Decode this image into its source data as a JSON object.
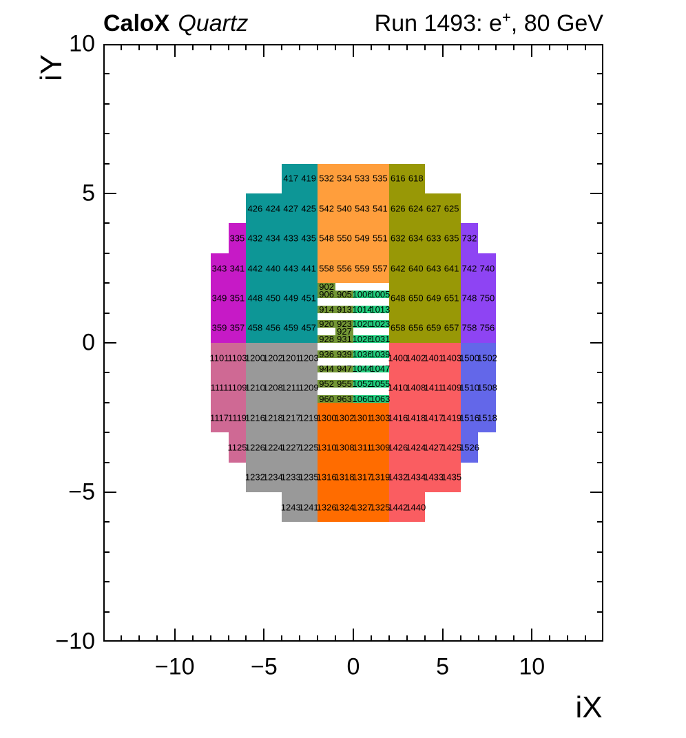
{
  "header": {
    "experiment": "CaloX",
    "detector": "Quartz",
    "run_prefix": "Run 1493: e",
    "run_sup": "+",
    "run_suffix": ", 80 GeV"
  },
  "colors": {
    "teal": "#0d9696",
    "magenta": "#c61ac6",
    "orange_top": "#ff9e3c",
    "olive": "#989806",
    "purple": "#8e44f3",
    "pink": "#cf6994",
    "gray": "#999999",
    "orange_bottom": "#ff6c00",
    "red": "#fa5d61",
    "blue": "#6367e9",
    "green_dark": "#739634",
    "green_bright": "#21ce7d",
    "frame": "#000000",
    "text": "#000000"
  },
  "chart_data": {
    "type": "heatmap",
    "title": "CaloX Quartz — Run 1493: e+, 80 GeV",
    "x_axis": {
      "title": "iX",
      "min": -14,
      "max": 14,
      "major_ticks": [
        -10,
        -5,
        0,
        5,
        10
      ],
      "major_labels": [
        "−10",
        "−5",
        "0",
        "5",
        "10"
      ],
      "minor_step": 1
    },
    "y_axis": {
      "title": "iY",
      "min": -10,
      "max": 10,
      "major_ticks": [
        10,
        5,
        0,
        -5,
        -10
      ],
      "major_labels": [
        "10",
        "5",
        "0",
        "−5",
        "−10"
      ],
      "minor_step": 1
    },
    "grid": false,
    "regions": [
      {
        "name": "teal-sector",
        "color": "teal",
        "rects": [
          [
            -6,
            0,
            -2,
            5
          ],
          [
            -4,
            5,
            -2,
            6
          ]
        ]
      },
      {
        "name": "magenta-sector",
        "color": "magenta",
        "rects": [
          [
            -8,
            0,
            -6,
            3
          ],
          [
            -7,
            3,
            -6,
            4
          ]
        ]
      },
      {
        "name": "orange-top-sector",
        "color": "orange_top",
        "rects": [
          [
            -2,
            2,
            2,
            6
          ]
        ]
      },
      {
        "name": "olive-sector",
        "color": "olive",
        "rects": [
          [
            2,
            0,
            6,
            5
          ],
          [
            2,
            5,
            4,
            6
          ]
        ]
      },
      {
        "name": "purple-sector",
        "color": "purple",
        "rects": [
          [
            6,
            0,
            8,
            3
          ],
          [
            6,
            3,
            7,
            4
          ]
        ]
      },
      {
        "name": "pink-sector",
        "color": "pink",
        "rects": [
          [
            -8,
            -3,
            -6,
            0
          ],
          [
            -7,
            -4,
            -6,
            -3
          ]
        ]
      },
      {
        "name": "gray-sector",
        "color": "gray",
        "rects": [
          [
            -6,
            -5,
            -2,
            0
          ],
          [
            -4,
            -6,
            -2,
            -5
          ]
        ]
      },
      {
        "name": "orange-bottom-sector",
        "color": "orange_bottom",
        "rects": [
          [
            -2,
            -6,
            2,
            -2
          ]
        ]
      },
      {
        "name": "red-sector",
        "color": "red",
        "rects": [
          [
            2,
            -5,
            6,
            0
          ],
          [
            2,
            -6,
            4,
            -5
          ]
        ]
      },
      {
        "name": "blue-sector",
        "color": "blue",
        "rects": [
          [
            6,
            -3,
            8,
            0
          ],
          [
            6,
            -4,
            7,
            -3
          ]
        ]
      }
    ],
    "cell_rows": [
      {
        "y": 5.5,
        "segments": [
          {
            "x0": -3.5,
            "labels": [
              "417",
              "419",
              "532",
              "534",
              "533",
              "535",
              "616",
              "618"
            ]
          }
        ]
      },
      {
        "y": 4.5,
        "segments": [
          {
            "x0": -5.5,
            "labels": [
              "426",
              "424",
              "427",
              "425",
              "542",
              "540",
              "543",
              "541",
              "626",
              "624",
              "627",
              "625"
            ]
          }
        ]
      },
      {
        "y": 3.5,
        "segments": [
          {
            "x0": -6.5,
            "labels": [
              "335",
              "432",
              "434",
              "433",
              "435",
              "548",
              "550",
              "549",
              "551",
              "632",
              "634",
              "633",
              "635",
              "732"
            ]
          }
        ]
      },
      {
        "y": 2.5,
        "segments": [
          {
            "x0": -7.5,
            "labels": [
              "343",
              "341",
              "442",
              "440",
              "443",
              "441",
              "558",
              "556",
              "559",
              "557",
              "642",
              "640",
              "643",
              "641",
              "742",
              "740"
            ]
          }
        ]
      },
      {
        "y": 1.5,
        "segments": [
          {
            "x0": -7.5,
            "labels": [
              "349",
              "351",
              "448",
              "450",
              "449",
              "451"
            ]
          },
          {
            "x0": 2.5,
            "labels": [
              "648",
              "650",
              "649",
              "651",
              "748",
              "750"
            ]
          }
        ]
      },
      {
        "y": 0.5,
        "segments": [
          {
            "x0": -7.5,
            "labels": [
              "359",
              "357",
              "458",
              "456",
              "459",
              "457"
            ]
          },
          {
            "x0": 2.5,
            "labels": [
              "658",
              "656",
              "659",
              "657",
              "758",
              "756"
            ]
          }
        ]
      },
      {
        "y": -0.5,
        "segments": [
          {
            "x0": -7.5,
            "labels": [
              "1101",
              "1103",
              "1200",
              "1202",
              "1201",
              "1203"
            ]
          },
          {
            "x0": 2.5,
            "labels": [
              "1400",
              "1402",
              "1401",
              "1403",
              "1500",
              "1502"
            ]
          }
        ]
      },
      {
        "y": -1.5,
        "segments": [
          {
            "x0": -7.5,
            "labels": [
              "1111",
              "1109",
              "1210",
              "1208",
              "1211",
              "1209"
            ]
          },
          {
            "x0": 2.5,
            "labels": [
              "1410",
              "1408",
              "1411",
              "1409",
              "1510",
              "1508"
            ]
          }
        ]
      },
      {
        "y": -2.5,
        "segments": [
          {
            "x0": -7.5,
            "labels": [
              "1117",
              "1119",
              "1216",
              "1218",
              "1217",
              "1219",
              "1300",
              "1302",
              "1301",
              "1303",
              "1416",
              "1418",
              "1417",
              "1419",
              "1516",
              "1518"
            ]
          }
        ]
      },
      {
        "y": -3.5,
        "segments": [
          {
            "x0": -6.5,
            "labels": [
              "1125",
              "1226",
              "1224",
              "1227",
              "1225",
              "1310",
              "1308",
              "1311",
              "1309",
              "1426",
              "1424",
              "1427",
              "1425",
              "1526"
            ]
          }
        ]
      },
      {
        "y": -4.5,
        "segments": [
          {
            "x0": -5.5,
            "labels": [
              "1232",
              "1234",
              "1233",
              "1235",
              "1316",
              "1318",
              "1317",
              "1319",
              "1432",
              "1434",
              "1433",
              "1435"
            ]
          }
        ]
      },
      {
        "y": -5.5,
        "segments": [
          {
            "x0": -3.5,
            "labels": [
              "1243",
              "1241",
              "1326",
              "1324",
              "1327",
              "1325",
              "1442",
              "1440"
            ]
          }
        ]
      }
    ],
    "subcell_rows": [
      {
        "y_top": 2.0,
        "cells": [
          {
            "x": -2,
            "t": "902",
            "c": "green_dark"
          }
        ]
      },
      {
        "y_top": 1.75,
        "cells": [
          {
            "x": -2,
            "t": "906",
            "c": "green_dark"
          },
          {
            "x": -1,
            "t": "905",
            "c": "green_dark"
          },
          {
            "x": 0,
            "t": "1006",
            "c": "green_bright"
          },
          {
            "x": 1,
            "t": "1005",
            "c": "green_bright"
          }
        ]
      },
      {
        "y_top": 1.25,
        "cells": [
          {
            "x": -2,
            "t": "914",
            "c": "green_dark"
          },
          {
            "x": -1,
            "t": "913",
            "c": "green_dark"
          },
          {
            "x": 0,
            "t": "1014",
            "c": "green_bright"
          },
          {
            "x": 1,
            "t": "1013",
            "c": "green_bright"
          }
        ]
      },
      {
        "y_top": 0.75,
        "cells": [
          {
            "x": -2,
            "t": "920",
            "c": "green_dark"
          },
          {
            "x": -1,
            "t": "923",
            "c": "green_dark"
          },
          {
            "x": 0,
            "t": "1020",
            "c": "green_bright"
          },
          {
            "x": 1,
            "t": "1023",
            "c": "green_bright"
          }
        ]
      },
      {
        "y_top": 0.5,
        "cells": [
          {
            "x": -1,
            "t": "927",
            "c": "green_dark"
          }
        ]
      },
      {
        "y_top": 0.25,
        "cells": [
          {
            "x": -2,
            "t": "928",
            "c": "green_dark"
          },
          {
            "x": -1,
            "t": "931",
            "c": "green_dark"
          },
          {
            "x": 0,
            "t": "1028",
            "c": "green_bright"
          },
          {
            "x": 1,
            "t": "1031",
            "c": "green_bright"
          }
        ]
      },
      {
        "y_top": -0.25,
        "cells": [
          {
            "x": -2,
            "t": "936",
            "c": "green_dark"
          },
          {
            "x": -1,
            "t": "939",
            "c": "green_dark"
          },
          {
            "x": 0,
            "t": "1036",
            "c": "green_bright"
          },
          {
            "x": 1,
            "t": "1039",
            "c": "green_bright"
          }
        ]
      },
      {
        "y_top": -0.75,
        "cells": [
          {
            "x": -2,
            "t": "944",
            "c": "green_dark"
          },
          {
            "x": -1,
            "t": "947",
            "c": "green_dark"
          },
          {
            "x": 0,
            "t": "1044",
            "c": "green_bright"
          },
          {
            "x": 1,
            "t": "1047",
            "c": "green_bright"
          }
        ]
      },
      {
        "y_top": -1.25,
        "cells": [
          {
            "x": -2,
            "t": "952",
            "c": "green_dark"
          },
          {
            "x": -1,
            "t": "955",
            "c": "green_dark"
          },
          {
            "x": 0,
            "t": "1052",
            "c": "green_bright"
          },
          {
            "x": 1,
            "t": "1055",
            "c": "green_bright"
          }
        ]
      },
      {
        "y_top": -1.75,
        "cells": [
          {
            "x": -2,
            "t": "960",
            "c": "green_dark"
          },
          {
            "x": -1,
            "t": "963",
            "c": "green_dark"
          },
          {
            "x": 0,
            "t": "1060",
            "c": "green_bright"
          },
          {
            "x": 1,
            "t": "1063",
            "c": "green_bright"
          }
        ]
      }
    ]
  }
}
